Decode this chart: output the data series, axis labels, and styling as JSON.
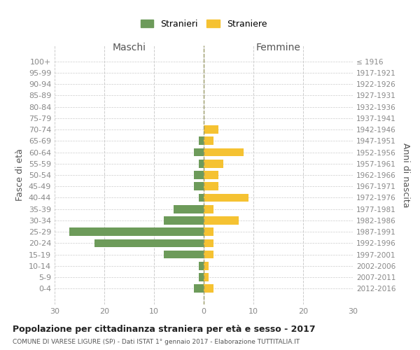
{
  "age_groups": [
    "100+",
    "95-99",
    "90-94",
    "85-89",
    "80-84",
    "75-79",
    "70-74",
    "65-69",
    "60-64",
    "55-59",
    "50-54",
    "45-49",
    "40-44",
    "35-39",
    "30-34",
    "25-29",
    "20-24",
    "15-19",
    "10-14",
    "5-9",
    "0-4"
  ],
  "birth_years": [
    "≤ 1916",
    "1917-1921",
    "1922-1926",
    "1927-1931",
    "1932-1936",
    "1937-1941",
    "1942-1946",
    "1947-1951",
    "1952-1956",
    "1957-1961",
    "1962-1966",
    "1967-1971",
    "1972-1976",
    "1977-1981",
    "1982-1986",
    "1987-1991",
    "1992-1996",
    "1997-2001",
    "2002-2006",
    "2007-2011",
    "2012-2016"
  ],
  "maschi": [
    0,
    0,
    0,
    0,
    0,
    0,
    0,
    1,
    2,
    1,
    2,
    2,
    1,
    6,
    8,
    27,
    22,
    8,
    1,
    1,
    2
  ],
  "femmine": [
    0,
    0,
    0,
    0,
    0,
    0,
    3,
    2,
    8,
    4,
    3,
    3,
    9,
    2,
    7,
    2,
    2,
    2,
    1,
    1,
    2
  ],
  "color_maschi": "#6d9b5a",
  "color_femmine": "#f5c232",
  "title": "Popolazione per cittadinanza straniera per età e sesso - 2017",
  "subtitle": "COMUNE DI VARESE LIGURE (SP) - Dati ISTAT 1° gennaio 2017 - Elaborazione TUTTITALIA.IT",
  "ylabel_left": "Fasce di età",
  "ylabel_right": "Anni di nascita",
  "xlabel_maschi": "Maschi",
  "xlabel_femmine": "Femmine",
  "legend_maschi": "Stranieri",
  "legend_femmine": "Straniere",
  "xlim": 30,
  "background_color": "#ffffff",
  "grid_color": "#cccccc",
  "axis_label_color": "#555555",
  "tick_color": "#888888"
}
